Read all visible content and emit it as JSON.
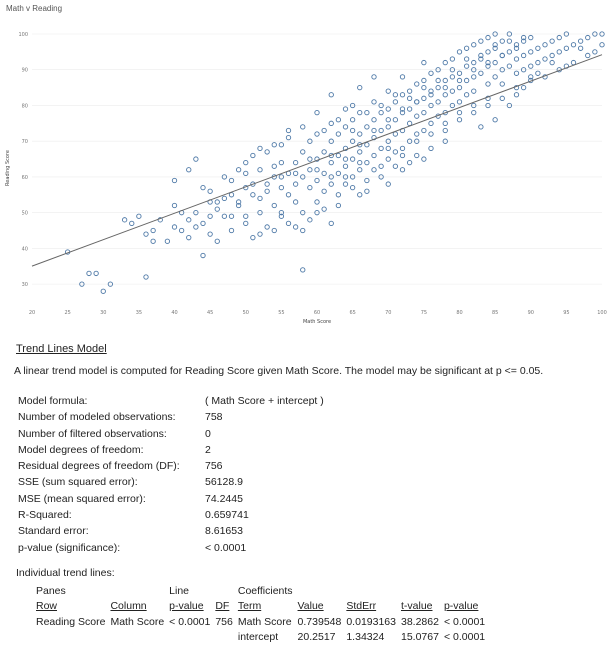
{
  "chart_data": {
    "type": "scatter",
    "title": "Math v Reading",
    "xlabel": "Math Score",
    "ylabel": "Reading Score",
    "xlim": [
      20,
      100
    ],
    "ylim": [
      25,
      100
    ],
    "x_ticks": [
      20,
      25,
      30,
      35,
      40,
      45,
      50,
      55,
      60,
      65,
      70,
      75,
      80,
      85,
      90,
      95,
      100
    ],
    "y_ticks": [
      30,
      40,
      50,
      60,
      70,
      80,
      90,
      100
    ],
    "x_tick_labels": [
      "20",
      "25",
      "30",
      "35",
      "40",
      "45",
      "50",
      "55",
      "60",
      "65",
      "70",
      "75",
      "80",
      "85",
      "90",
      "95",
      "100"
    ],
    "y_tick_labels": [
      "30",
      "40",
      "50",
      "60",
      "70",
      "80",
      "90",
      "100"
    ],
    "grid": true,
    "trend_line": {
      "intercept": 20.2517,
      "slope": 0.739548
    },
    "points": [
      [
        25,
        39
      ],
      [
        27,
        30
      ],
      [
        28,
        33
      ],
      [
        29,
        33
      ],
      [
        30,
        28
      ],
      [
        31,
        30
      ],
      [
        33,
        48
      ],
      [
        34,
        47
      ],
      [
        35,
        49
      ],
      [
        36,
        44
      ],
      [
        36,
        32
      ],
      [
        37,
        42
      ],
      [
        37,
        45
      ],
      [
        38,
        48
      ],
      [
        39,
        42
      ],
      [
        40,
        52
      ],
      [
        40,
        46
      ],
      [
        40,
        59
      ],
      [
        41,
        50
      ],
      [
        42,
        43
      ],
      [
        42,
        48
      ],
      [
        43,
        65
      ],
      [
        43,
        50
      ],
      [
        44,
        47
      ],
      [
        44,
        38
      ],
      [
        45,
        44
      ],
      [
        45,
        53
      ],
      [
        45,
        56
      ],
      [
        46,
        53
      ],
      [
        46,
        42
      ],
      [
        47,
        60
      ],
      [
        47,
        49
      ],
      [
        48,
        55
      ],
      [
        48,
        59
      ],
      [
        48,
        45
      ],
      [
        49,
        62
      ],
      [
        49,
        53
      ],
      [
        50,
        49
      ],
      [
        50,
        57
      ],
      [
        50,
        61
      ],
      [
        51,
        66
      ],
      [
        51,
        58
      ],
      [
        51,
        43
      ],
      [
        52,
        54
      ],
      [
        52,
        50
      ],
      [
        52,
        62
      ],
      [
        53,
        67
      ],
      [
        53,
        46
      ],
      [
        53,
        56
      ],
      [
        54,
        60
      ],
      [
        54,
        52
      ],
      [
        54,
        63
      ],
      [
        55,
        57
      ],
      [
        55,
        64
      ],
      [
        55,
        49
      ],
      [
        55,
        69
      ],
      [
        56,
        55
      ],
      [
        56,
        61
      ],
      [
        56,
        71
      ],
      [
        57,
        53
      ],
      [
        57,
        58
      ],
      [
        57,
        64
      ],
      [
        58,
        60
      ],
      [
        58,
        67
      ],
      [
        58,
        50
      ],
      [
        58,
        34
      ],
      [
        59,
        62
      ],
      [
        59,
        57
      ],
      [
        59,
        70
      ],
      [
        60,
        65
      ],
      [
        60,
        59
      ],
      [
        60,
        53
      ],
      [
        60,
        72
      ],
      [
        61,
        61
      ],
      [
        61,
        67
      ],
      [
        61,
        56
      ],
      [
        62,
        64
      ],
      [
        62,
        70
      ],
      [
        62,
        58
      ],
      [
        62,
        75
      ],
      [
        63,
        66
      ],
      [
        63,
        61
      ],
      [
        63,
        72
      ],
      [
        63,
        55
      ],
      [
        64,
        68
      ],
      [
        64,
        63
      ],
      [
        64,
        74
      ],
      [
        64,
        58
      ],
      [
        65,
        70
      ],
      [
        65,
        65
      ],
      [
        65,
        76
      ],
      [
        65,
        60
      ],
      [
        65,
        80
      ],
      [
        66,
        67
      ],
      [
        66,
        72
      ],
      [
        66,
        62
      ],
      [
        66,
        78
      ],
      [
        67,
        69
      ],
      [
        67,
        74
      ],
      [
        67,
        64
      ],
      [
        67,
        59
      ],
      [
        68,
        71
      ],
      [
        68,
        76
      ],
      [
        68,
        66
      ],
      [
        68,
        81
      ],
      [
        69,
        73
      ],
      [
        69,
        68
      ],
      [
        69,
        78
      ],
      [
        69,
        63
      ],
      [
        70,
        74
      ],
      [
        70,
        70
      ],
      [
        70,
        79
      ],
      [
        70,
        65
      ],
      [
        70,
        84
      ],
      [
        71,
        76
      ],
      [
        71,
        72
      ],
      [
        71,
        81
      ],
      [
        71,
        67
      ],
      [
        72,
        78
      ],
      [
        72,
        73
      ],
      [
        72,
        83
      ],
      [
        72,
        68
      ],
      [
        72,
        88
      ],
      [
        73,
        79
      ],
      [
        73,
        75
      ],
      [
        73,
        84
      ],
      [
        73,
        70
      ],
      [
        74,
        81
      ],
      [
        74,
        77
      ],
      [
        74,
        86
      ],
      [
        74,
        72
      ],
      [
        75,
        82
      ],
      [
        75,
        78
      ],
      [
        75,
        87
      ],
      [
        75,
        73
      ],
      [
        75,
        92
      ],
      [
        76,
        84
      ],
      [
        76,
        80
      ],
      [
        76,
        89
      ],
      [
        76,
        75
      ],
      [
        77,
        85
      ],
      [
        77,
        81
      ],
      [
        77,
        90
      ],
      [
        77,
        77
      ],
      [
        78,
        87
      ],
      [
        78,
        83
      ],
      [
        78,
        92
      ],
      [
        78,
        78
      ],
      [
        79,
        88
      ],
      [
        79,
        84
      ],
      [
        79,
        93
      ],
      [
        79,
        80
      ],
      [
        80,
        89
      ],
      [
        80,
        85
      ],
      [
        80,
        95
      ],
      [
        80,
        81
      ],
      [
        81,
        91
      ],
      [
        81,
        87
      ],
      [
        81,
        96
      ],
      [
        81,
        83
      ],
      [
        82,
        92
      ],
      [
        82,
        88
      ],
      [
        82,
        97
      ],
      [
        82,
        84
      ],
      [
        83,
        93
      ],
      [
        83,
        89
      ],
      [
        83,
        98
      ],
      [
        84,
        95
      ],
      [
        84,
        91
      ],
      [
        84,
        99
      ],
      [
        84,
        86
      ],
      [
        85,
        96
      ],
      [
        85,
        92
      ],
      [
        85,
        100
      ],
      [
        85,
        88
      ],
      [
        86,
        94
      ],
      [
        86,
        90
      ],
      [
        86,
        98
      ],
      [
        87,
        95
      ],
      [
        87,
        91
      ],
      [
        87,
        100
      ],
      [
        88,
        97
      ],
      [
        88,
        93
      ],
      [
        88,
        89
      ],
      [
        89,
        98
      ],
      [
        89,
        94
      ],
      [
        89,
        90
      ],
      [
        90,
        99
      ],
      [
        90,
        95
      ],
      [
        90,
        91
      ],
      [
        91,
        96
      ],
      [
        91,
        92
      ],
      [
        92,
        97
      ],
      [
        92,
        93
      ],
      [
        93,
        98
      ],
      [
        93,
        94
      ],
      [
        94,
        99
      ],
      [
        94,
        95
      ],
      [
        95,
        100
      ],
      [
        95,
        96
      ],
      [
        96,
        97
      ],
      [
        97,
        98
      ],
      [
        98,
        99
      ],
      [
        99,
        100
      ],
      [
        100,
        97
      ],
      [
        100,
        100
      ],
      [
        66,
        55
      ],
      [
        70,
        58
      ],
      [
        72,
        62
      ],
      [
        75,
        65
      ],
      [
        78,
        70
      ],
      [
        62,
        47
      ],
      [
        60,
        50
      ],
      [
        58,
        45
      ],
      [
        56,
        47
      ],
      [
        54,
        45
      ],
      [
        52,
        44
      ],
      [
        50,
        47
      ],
      [
        48,
        49
      ],
      [
        46,
        51
      ],
      [
        44,
        57
      ],
      [
        42,
        62
      ],
      [
        64,
        79
      ],
      [
        66,
        85
      ],
      [
        68,
        88
      ],
      [
        62,
        83
      ],
      [
        60,
        78
      ],
      [
        58,
        74
      ],
      [
        56,
        73
      ],
      [
        54,
        69
      ],
      [
        52,
        68
      ],
      [
        50,
        64
      ],
      [
        80,
        76
      ],
      [
        82,
        78
      ],
      [
        84,
        80
      ],
      [
        86,
        82
      ],
      [
        88,
        83
      ],
      [
        90,
        87
      ],
      [
        92,
        88
      ],
      [
        94,
        90
      ],
      [
        96,
        92
      ],
      [
        98,
        94
      ],
      [
        76,
        68
      ],
      [
        78,
        73
      ],
      [
        74,
        66
      ],
      [
        85,
        76
      ],
      [
        87,
        80
      ],
      [
        71,
        63
      ],
      [
        73,
        64
      ],
      [
        69,
        60
      ],
      [
        67,
        56
      ],
      [
        65,
        57
      ],
      [
        63,
        52
      ],
      [
        61,
        51
      ],
      [
        59,
        48
      ],
      [
        57,
        46
      ],
      [
        55,
        50
      ],
      [
        83,
        74
      ],
      [
        89,
        85
      ],
      [
        91,
        89
      ],
      [
        93,
        92
      ],
      [
        95,
        91
      ],
      [
        97,
        96
      ],
      [
        99,
        95
      ],
      [
        62,
        66
      ],
      [
        64,
        60
      ],
      [
        66,
        64
      ],
      [
        68,
        62
      ],
      [
        70,
        68
      ],
      [
        72,
        66
      ],
      [
        74,
        70
      ],
      [
        76,
        72
      ],
      [
        78,
        75
      ],
      [
        80,
        78
      ],
      [
        82,
        80
      ],
      [
        84,
        82
      ],
      [
        86,
        86
      ],
      [
        88,
        85
      ],
      [
        90,
        88
      ],
      [
        61,
        73
      ],
      [
        63,
        76
      ],
      [
        65,
        73
      ],
      [
        67,
        78
      ],
      [
        69,
        80
      ],
      [
        71,
        83
      ],
      [
        73,
        82
      ],
      [
        75,
        85
      ],
      [
        77,
        87
      ],
      [
        79,
        90
      ],
      [
        81,
        93
      ],
      [
        83,
        94
      ],
      [
        85,
        97
      ],
      [
        87,
        98
      ],
      [
        89,
        99
      ],
      [
        59,
        65
      ],
      [
        57,
        61
      ],
      [
        55,
        60
      ],
      [
        53,
        58
      ],
      [
        51,
        55
      ],
      [
        49,
        52
      ],
      [
        47,
        54
      ],
      [
        45,
        49
      ],
      [
        43,
        46
      ],
      [
        41,
        45
      ],
      [
        60,
        62
      ],
      [
        62,
        60
      ],
      [
        64,
        65
      ],
      [
        66,
        69
      ],
      [
        68,
        73
      ],
      [
        70,
        76
      ],
      [
        72,
        79
      ],
      [
        74,
        81
      ],
      [
        76,
        83
      ],
      [
        78,
        85
      ],
      [
        80,
        87
      ],
      [
        82,
        90
      ],
      [
        84,
        92
      ],
      [
        86,
        94
      ],
      [
        88,
        96
      ]
    ]
  },
  "model": {
    "title": "Trend Lines Model",
    "description": "A linear trend model is computed for Reading Score given Math Score.  The model may be significant at p <= 0.05.",
    "stats": [
      {
        "label": "Model formula:",
        "value": "( Math Score + intercept )"
      },
      {
        "label": "Number of modeled observations:",
        "value": "758"
      },
      {
        "label": "Number of filtered observations:",
        "value": "0"
      },
      {
        "label": "Model degrees of freedom:",
        "value": "2"
      },
      {
        "label": "Residual degrees of freedom (DF):",
        "value": "756"
      },
      {
        "label": "SSE (sum squared error):",
        "value": "56128.9"
      },
      {
        "label": "MSE (mean squared error):",
        "value": "74.2445"
      },
      {
        "label": "R-Squared:",
        "value": "0.659741"
      },
      {
        "label": "Standard error:",
        "value": "8.61653"
      },
      {
        "label": "p-value (significance):",
        "value": "< 0.0001"
      }
    ],
    "individual_title": "Individual trend lines:",
    "table": {
      "group_headers": {
        "panes": "Panes",
        "line": "Line",
        "coefficients": "Coefficients"
      },
      "headers": {
        "row": "Row",
        "column": "Column",
        "pvalue": "p-value",
        "df": "DF",
        "term": "Term",
        "value": "Value",
        "stderr": "StdErr",
        "tvalue": "t-value",
        "coef_pvalue": "p-value"
      },
      "rows": [
        {
          "row": "Reading Score",
          "column": "Math Score",
          "pvalue": "< 0.0001",
          "df": "756",
          "term": "Math Score",
          "value": "0.739548",
          "stderr": "0.0193163",
          "tvalue": "38.2862",
          "coef_pvalue": "< 0.0001"
        },
        {
          "row": "",
          "column": "",
          "pvalue": "",
          "df": "",
          "term": "intercept",
          "value": "20.2517",
          "stderr": "1.34324",
          "tvalue": "15.0767",
          "coef_pvalue": "< 0.0001"
        }
      ]
    }
  }
}
